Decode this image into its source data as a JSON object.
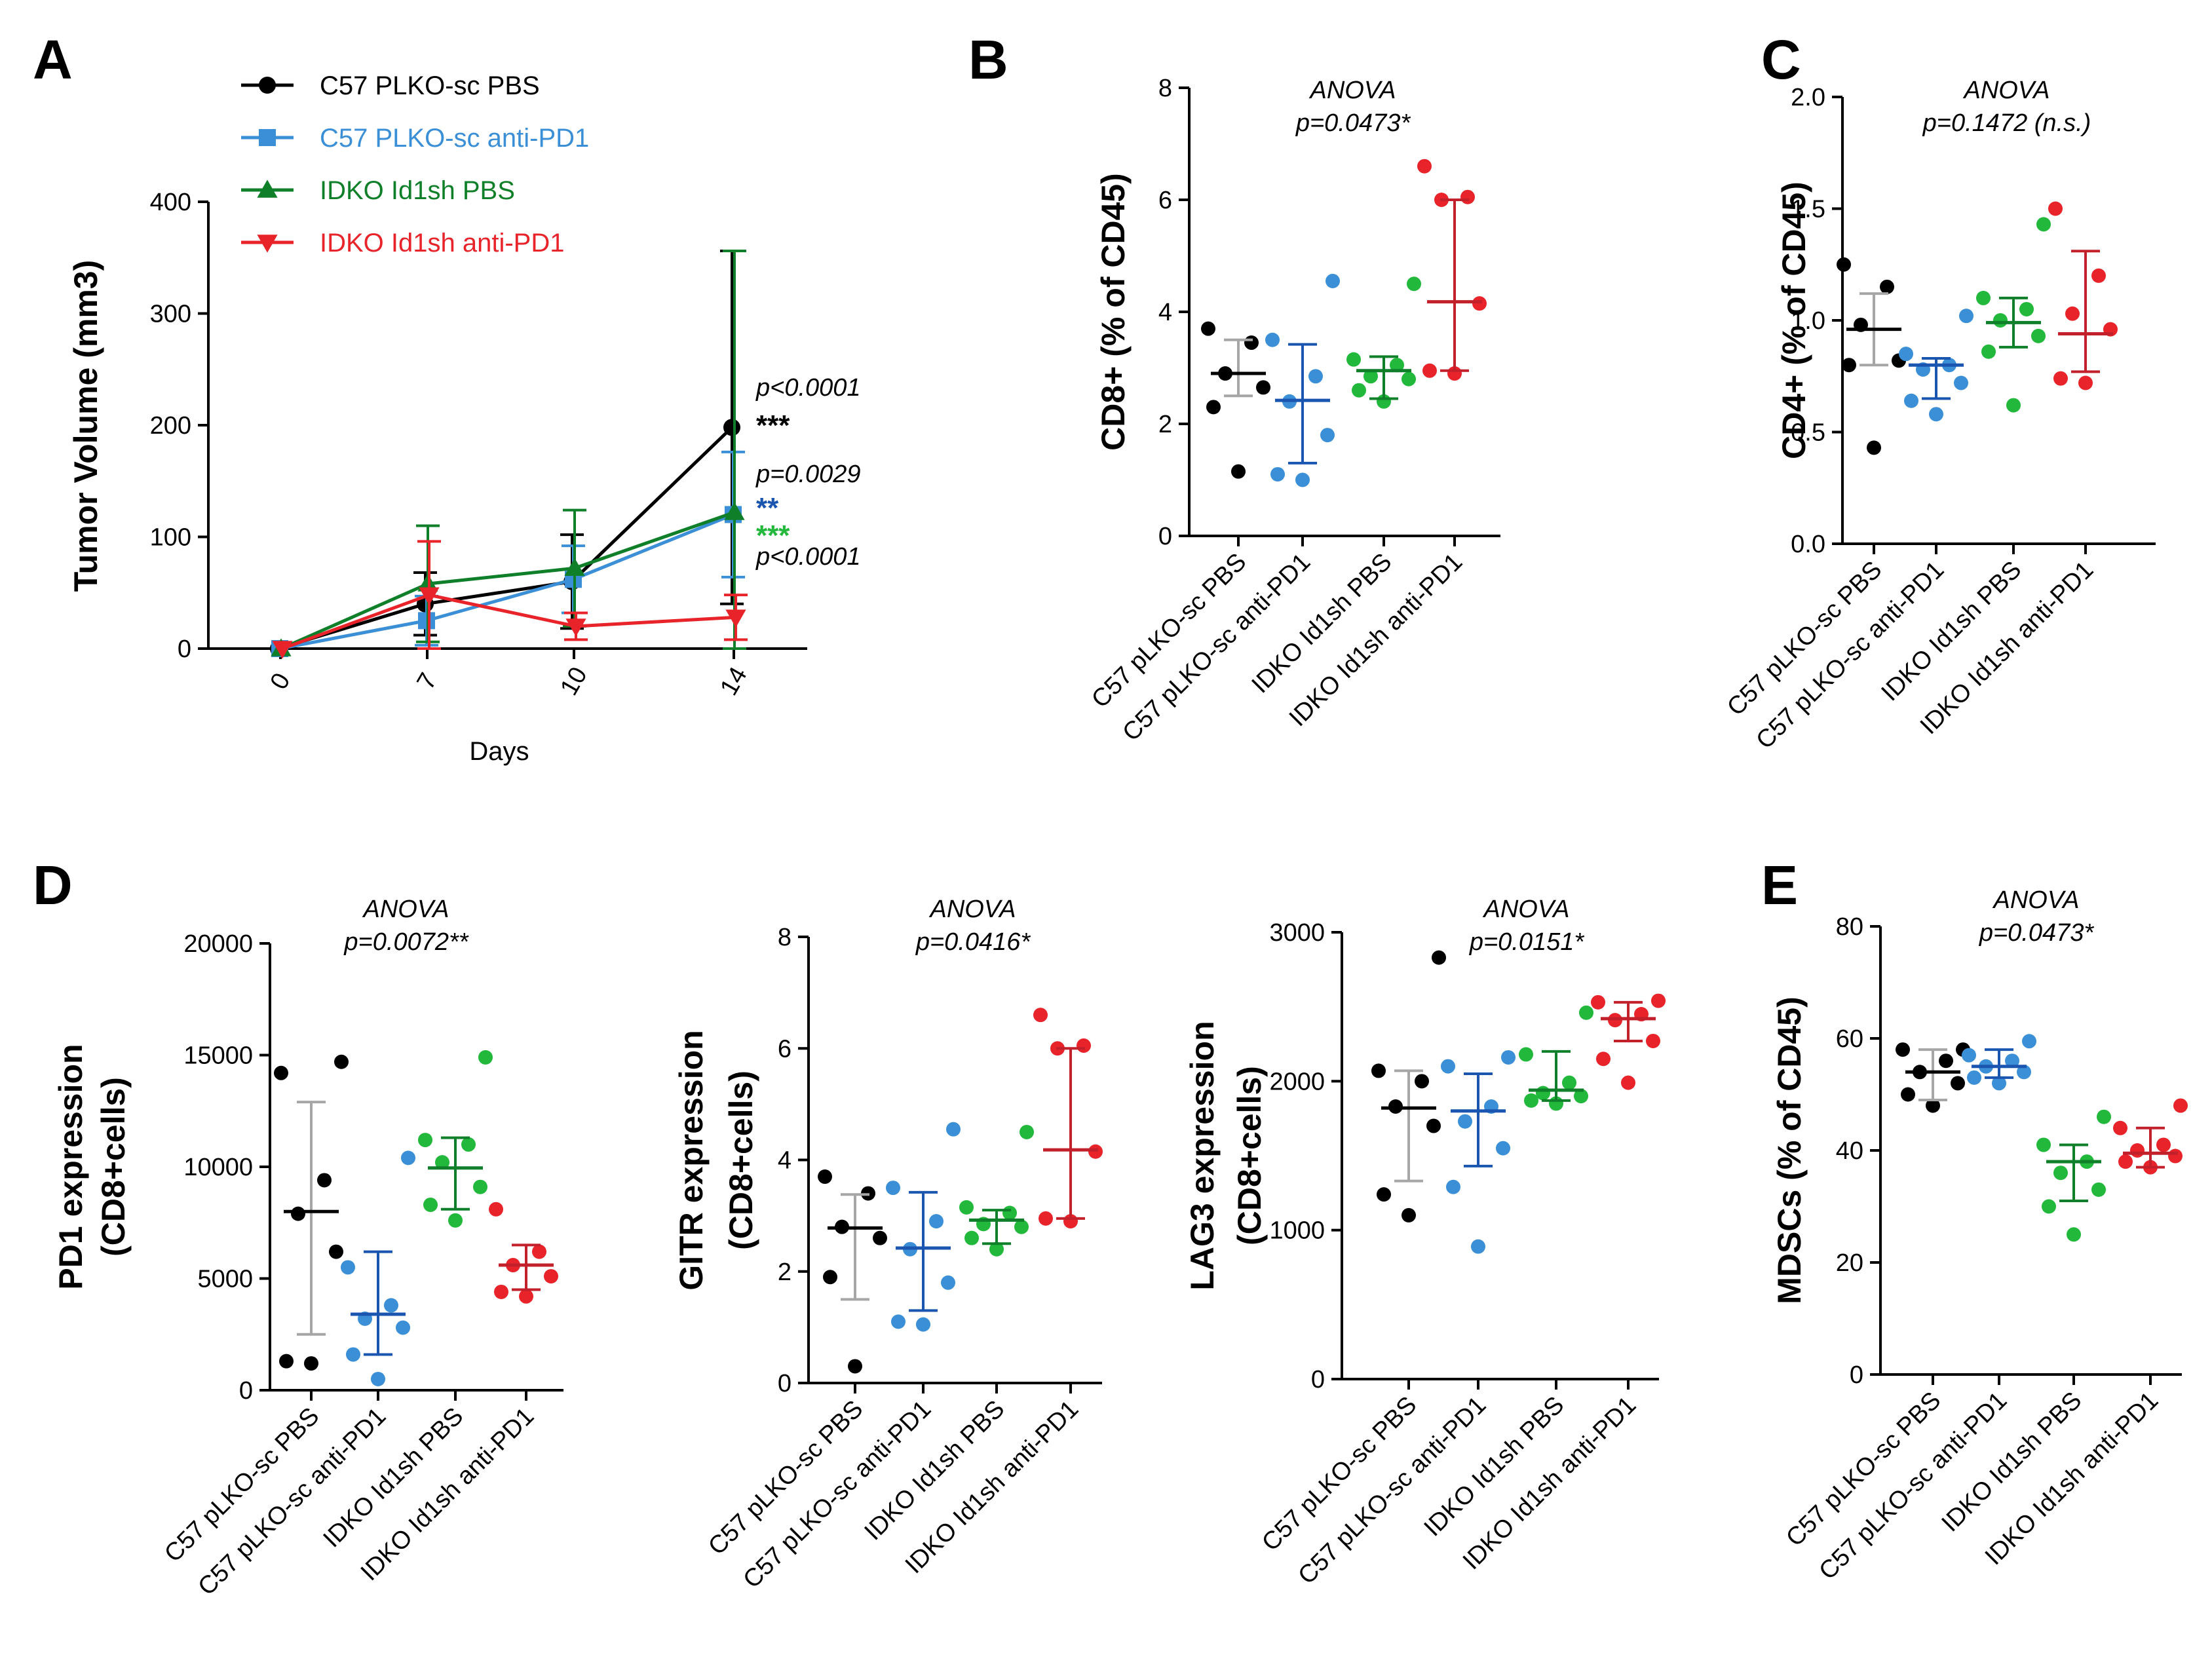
{
  "colors": {
    "black": "#000000",
    "blue_light": "#3b8fd6",
    "blue_dark": "#1a55b0",
    "green": "#0f7f2a",
    "green_light": "#21b83b",
    "red": "#e8232a",
    "red_dark": "#c2202b",
    "gray": "#a6a6a6"
  },
  "categories": [
    "C57 pLKO-sc PBS",
    "C57 pLKO-sc anti-PD1",
    "IDKO Id1sh PBS",
    "IDKO Id1sh anti-PD1"
  ],
  "chart_data": [
    {
      "id": "A",
      "type": "line",
      "letter": "A",
      "xlabel": "Days",
      "ylabel": "Tumor Volume (mm3)",
      "x": [
        0,
        7,
        10,
        14
      ],
      "x_ticks": [
        "0",
        "7",
        "10",
        "14"
      ],
      "ylim": [
        0,
        400
      ],
      "y_ticks": [
        0,
        100,
        200,
        300,
        400
      ],
      "series": [
        {
          "name": "C57 PLKO-sc PBS",
          "color": "#000000",
          "marker": "circle",
          "values": [
            0,
            40,
            60,
            198
          ],
          "err": [
            0,
            28,
            42,
            158
          ]
        },
        {
          "name": "C57 PLKO-sc anti-PD1",
          "color": "#3b8fd6",
          "marker": "square",
          "values": [
            0,
            25,
            62,
            120
          ],
          "err": [
            0,
            22,
            30,
            56
          ]
        },
        {
          "name": "IDKO Id1sh PBS",
          "color": "#0f7f2a",
          "marker": "triangle-up",
          "values": [
            0,
            58,
            72,
            122
          ],
          "err": [
            0,
            52,
            52,
            234
          ]
        },
        {
          "name": "IDKO Id1sh anti-PD1",
          "color": "#e8232a",
          "marker": "triangle-down",
          "values": [
            0,
            48,
            20,
            28
          ],
          "err": [
            0,
            48,
            12,
            20
          ]
        }
      ],
      "annotations": [
        {
          "text": "p<0.0001",
          "kind": "pval",
          "color": "#000000"
        },
        {
          "text": "***",
          "kind": "stars",
          "color": "#000000"
        },
        {
          "text": "p=0.0029",
          "kind": "pval",
          "color": "#000000"
        },
        {
          "text": "**",
          "kind": "stars",
          "color": "#1a55b0"
        },
        {
          "text": "***",
          "kind": "stars",
          "color": "#21b83b"
        },
        {
          "text": "p<0.0001",
          "kind": "pval",
          "color": "#000000"
        }
      ]
    },
    {
      "id": "B",
      "type": "scatter",
      "letter": "B",
      "ylabel": "CD8+ (% of CD45)",
      "ylim": [
        0,
        8
      ],
      "y_ticks": [
        0,
        2,
        4,
        6,
        8
      ],
      "anova": [
        "ANOVA",
        "p=0.0473*"
      ],
      "groups": [
        {
          "points": [
            1.15,
            2.3,
            2.65,
            2.9,
            3.45,
            3.7
          ],
          "mean": 2.9,
          "err_lo": 2.5,
          "err_hi": 3.5,
          "dot": "#000000",
          "bar": "#a6a6a6",
          "mean_color": "#000000"
        },
        {
          "points": [
            1.0,
            1.1,
            1.8,
            2.4,
            2.85,
            3.5,
            4.55
          ],
          "mean": 2.42,
          "err_lo": 1.3,
          "err_hi": 3.42,
          "dot": "#3b8fd6",
          "bar": "#1a55b0",
          "mean_color": "#1a55b0"
        },
        {
          "points": [
            2.4,
            2.6,
            2.8,
            2.85,
            3.05,
            3.15,
            4.5
          ],
          "mean": 2.95,
          "err_lo": 2.45,
          "err_hi": 3.2,
          "dot": "#21b83b",
          "bar": "#0f7f2a",
          "mean_color": "#0f7f2a"
        },
        {
          "points": [
            2.9,
            2.95,
            4.15,
            6.0,
            6.05,
            6.6
          ],
          "mean": 4.18,
          "err_lo": 2.95,
          "err_hi": 6.0,
          "dot": "#e8232a",
          "bar": "#c2202b",
          "mean_color": "#c2202b"
        }
      ]
    },
    {
      "id": "C",
      "type": "scatter",
      "letter": "C",
      "ylabel": "CD4+ (% of CD45)",
      "ylim": [
        0,
        2.0
      ],
      "y_ticks_labels": [
        "0.0",
        "0.5",
        "1.0",
        "1.5",
        "2.0"
      ],
      "y_ticks": [
        0,
        0.5,
        1.0,
        1.5,
        2.0
      ],
      "anova": [
        "ANOVA",
        "p=0.1472  (n.s.)"
      ],
      "groups": [
        {
          "points": [
            0.43,
            0.8,
            0.82,
            0.98,
            1.15,
            1.25
          ],
          "mean": 0.96,
          "err_lo": 0.8,
          "err_hi": 1.12,
          "dot": "#000000",
          "bar": "#a6a6a6",
          "mean_color": "#000000"
        },
        {
          "points": [
            0.58,
            0.64,
            0.72,
            0.78,
            0.8,
            0.85,
            1.02
          ],
          "mean": 0.8,
          "err_lo": 0.65,
          "err_hi": 0.83,
          "dot": "#3b8fd6",
          "bar": "#1a55b0",
          "mean_color": "#1a55b0"
        },
        {
          "points": [
            0.62,
            0.86,
            0.93,
            1.0,
            1.05,
            1.1,
            1.43
          ],
          "mean": 0.99,
          "err_lo": 0.88,
          "err_hi": 1.1,
          "dot": "#21b83b",
          "bar": "#0f7f2a",
          "mean_color": "#0f7f2a"
        },
        {
          "points": [
            0.72,
            0.74,
            0.96,
            1.03,
            1.2,
            1.5
          ],
          "mean": 0.94,
          "err_lo": 0.77,
          "err_hi": 1.31,
          "dot": "#e8232a",
          "bar": "#c2202b",
          "mean_color": "#c2202b"
        }
      ]
    },
    {
      "id": "D1",
      "type": "scatter",
      "letter": "D",
      "ylabel": [
        "PD1 expression",
        "(CD8+cells)"
      ],
      "ylim": [
        0,
        20000
      ],
      "y_ticks": [
        0,
        5000,
        10000,
        15000,
        20000
      ],
      "anova": [
        "ANOVA",
        "p=0.0072**"
      ],
      "groups": [
        {
          "points": [
            1200,
            1300,
            6200,
            7900,
            9400,
            14200,
            14700
          ],
          "mean": 8000,
          "err_lo": 2500,
          "err_hi": 12900,
          "dot": "#000000",
          "bar": "#a6a6a6",
          "mean_color": "#000000"
        },
        {
          "points": [
            500,
            1600,
            2800,
            3200,
            3800,
            5500,
            10400
          ],
          "mean": 3400,
          "err_lo": 1600,
          "err_hi": 6200,
          "dot": "#3b8fd6",
          "bar": "#1a55b0",
          "mean_color": "#1a55b0"
        },
        {
          "points": [
            7600,
            8300,
            9100,
            10200,
            11000,
            11200,
            14900
          ],
          "mean": 9950,
          "err_lo": 8100,
          "err_hi": 11300,
          "dot": "#21b83b",
          "bar": "#0f7f2a",
          "mean_color": "#0f7f2a"
        },
        {
          "points": [
            4200,
            4400,
            5100,
            5600,
            6200,
            8100
          ],
          "mean": 5600,
          "err_lo": 4500,
          "err_hi": 6500,
          "dot": "#e8232a",
          "bar": "#c2202b",
          "mean_color": "#c2202b"
        }
      ]
    },
    {
      "id": "D2",
      "type": "scatter",
      "letter": "",
      "ylabel": [
        "GITR expression",
        "(CD8+cells)"
      ],
      "ylim": [
        0,
        8
      ],
      "y_ticks": [
        0,
        2,
        4,
        6,
        8
      ],
      "anova": [
        "ANOVA",
        "p=0.0416*"
      ],
      "groups": [
        {
          "points": [
            0.3,
            1.9,
            2.6,
            2.8,
            3.4,
            3.7
          ],
          "mean": 2.78,
          "err_lo": 1.5,
          "err_hi": 3.38,
          "dot": "#000000",
          "bar": "#a6a6a6",
          "mean_color": "#000000"
        },
        {
          "points": [
            1.05,
            1.1,
            1.8,
            2.4,
            2.9,
            3.5,
            4.55
          ],
          "mean": 2.42,
          "err_lo": 1.3,
          "err_hi": 3.42,
          "dot": "#3b8fd6",
          "bar": "#1a55b0",
          "mean_color": "#1a55b0"
        },
        {
          "points": [
            2.4,
            2.6,
            2.8,
            2.85,
            3.05,
            3.15,
            4.5
          ],
          "mean": 2.92,
          "err_lo": 2.5,
          "err_hi": 3.1,
          "dot": "#21b83b",
          "bar": "#0f7f2a",
          "mean_color": "#0f7f2a"
        },
        {
          "points": [
            2.9,
            2.95,
            4.15,
            6.0,
            6.05,
            6.6
          ],
          "mean": 4.18,
          "err_lo": 2.95,
          "err_hi": 6.0,
          "dot": "#e8232a",
          "bar": "#c2202b",
          "mean_color": "#c2202b"
        }
      ]
    },
    {
      "id": "D3",
      "type": "scatter",
      "letter": "",
      "ylabel": [
        "LAG3 expression",
        "(CD8+cells)"
      ],
      "ylim": [
        0,
        3000
      ],
      "y_ticks": [
        0,
        1000,
        2000,
        3000
      ],
      "anova": [
        "ANOVA",
        "p=0.0151*"
      ],
      "groups": [
        {
          "points": [
            1100,
            1240,
            1700,
            1830,
            2000,
            2070,
            2830
          ],
          "mean": 1820,
          "err_lo": 1330,
          "err_hi": 2070,
          "dot": "#000000",
          "bar": "#a6a6a6",
          "mean_color": "#000000"
        },
        {
          "points": [
            890,
            1290,
            1550,
            1730,
            1830,
            2100,
            2160
          ],
          "mean": 1800,
          "err_lo": 1430,
          "err_hi": 2050,
          "dot": "#3b8fd6",
          "bar": "#1a55b0",
          "mean_color": "#1a55b0"
        },
        {
          "points": [
            1850,
            1870,
            1900,
            1920,
            1990,
            2180,
            2460
          ],
          "mean": 1940,
          "err_lo": 1870,
          "err_hi": 2200,
          "dot": "#21b83b",
          "bar": "#0f7f2a",
          "mean_color": "#0f7f2a"
        },
        {
          "points": [
            1990,
            2150,
            2270,
            2410,
            2450,
            2530,
            2540
          ],
          "mean": 2420,
          "err_lo": 2270,
          "err_hi": 2530,
          "dot": "#e8232a",
          "bar": "#c2202b",
          "mean_color": "#c2202b"
        }
      ]
    },
    {
      "id": "E",
      "type": "scatter",
      "letter": "E",
      "ylabel": "MDSCs (% of CD45)",
      "ylim": [
        0,
        80
      ],
      "y_ticks": [
        0,
        20,
        40,
        60,
        80
      ],
      "anova": [
        "ANOVA",
        "p=0.0473*"
      ],
      "groups": [
        {
          "points": [
            48,
            50,
            52,
            54,
            56,
            58,
            58
          ],
          "mean": 54,
          "err_lo": 49,
          "err_hi": 58,
          "dot": "#000000",
          "bar": "#a6a6a6",
          "mean_color": "#000000"
        },
        {
          "points": [
            52,
            53,
            54,
            55,
            56,
            57,
            59.5
          ],
          "mean": 55,
          "err_lo": 53,
          "err_hi": 58,
          "dot": "#3b8fd6",
          "bar": "#1a55b0",
          "mean_color": "#1a55b0"
        },
        {
          "points": [
            25,
            30,
            33,
            36,
            38,
            41,
            46
          ],
          "mean": 38,
          "err_lo": 31,
          "err_hi": 41,
          "dot": "#21b83b",
          "bar": "#0f7f2a",
          "mean_color": "#0f7f2a"
        },
        {
          "points": [
            37,
            38,
            39,
            40,
            41,
            44,
            48
          ],
          "mean": 39.5,
          "err_lo": 37,
          "err_hi": 44,
          "dot": "#e8232a",
          "bar": "#c2202b",
          "mean_color": "#c2202b"
        }
      ]
    }
  ]
}
